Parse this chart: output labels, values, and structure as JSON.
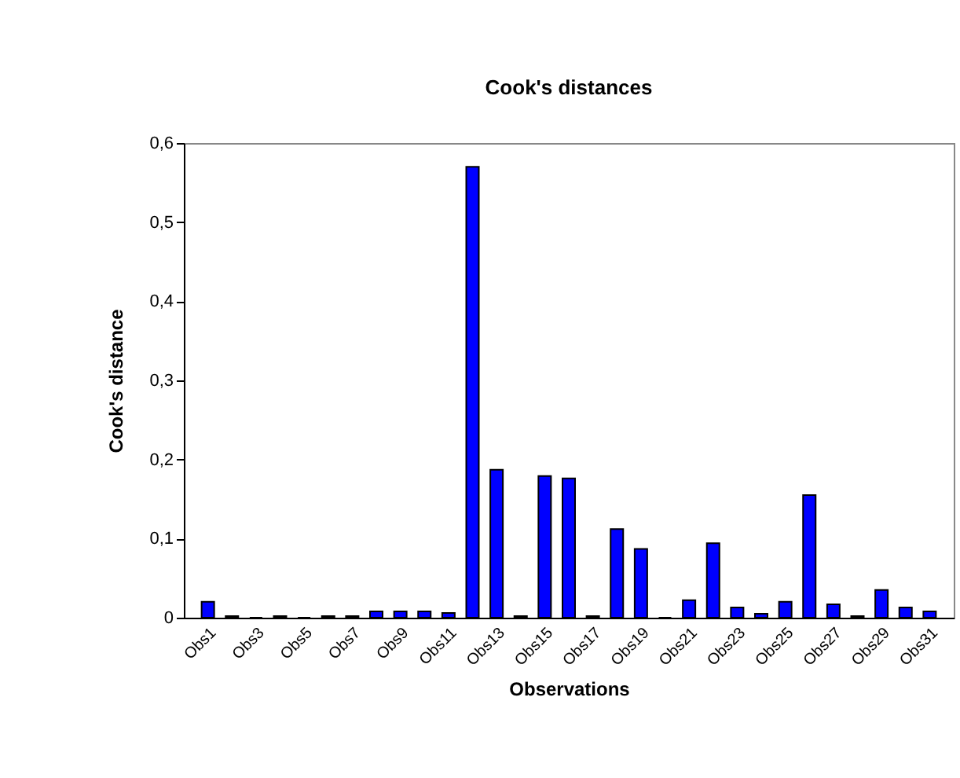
{
  "chart_data": {
    "type": "bar",
    "title": "Cook's distances",
    "xlabel": "Observations",
    "ylabel": "Cook's distance",
    "categories": [
      "Obs1",
      null,
      "Obs3",
      null,
      "Obs5",
      null,
      "Obs7",
      null,
      "Obs9",
      null,
      "Obs11",
      null,
      "Obs13",
      null,
      "Obs15",
      null,
      "Obs17",
      null,
      "Obs19",
      null,
      "Obs21",
      null,
      "Obs23",
      null,
      "Obs25",
      null,
      "Obs27",
      null,
      "Obs29",
      null,
      "Obs31"
    ],
    "values": [
      0.02,
      0.002,
      0,
      0.002,
      0,
      0.002,
      0.002,
      0.008,
      0.008,
      0.008,
      0.006,
      0.57,
      0.187,
      0.002,
      0.179,
      0.176,
      0.002,
      0.112,
      0.087,
      0,
      0.022,
      0.094,
      0.013,
      0.005,
      0.02,
      0.155,
      0.017,
      0.002,
      0.035,
      0.013,
      0.008
    ],
    "color": "#0000ff",
    "ylim": [
      0,
      0.6
    ],
    "yticks": [
      {
        "value": 0,
        "label": "0"
      },
      {
        "value": 0.1,
        "label": "0,1"
      },
      {
        "value": 0.2,
        "label": "0,2"
      },
      {
        "value": 0.3,
        "label": "0,3"
      },
      {
        "value": 0.4,
        "label": "0,4"
      },
      {
        "value": 0.5,
        "label": "0,5"
      },
      {
        "value": 0.6,
        "label": "0,6"
      }
    ],
    "grid": false
  }
}
